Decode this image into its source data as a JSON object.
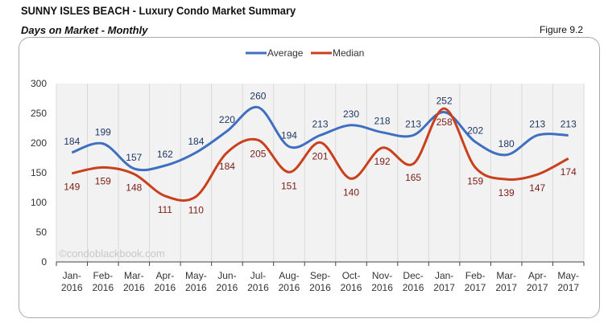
{
  "header": {
    "title": "SUNNY ISLES BEACH - Luxury Condo Market Summary",
    "subtitle": "Days on Market - Monthly",
    "figure": "Figure 9.2"
  },
  "watermark": "©condoblackbook.com",
  "chart_data": {
    "type": "line",
    "title": "",
    "xlabel": "",
    "ylabel": "",
    "categories": [
      "Jan-2016",
      "Feb-2016",
      "Mar-2016",
      "Apr-2016",
      "May-2016",
      "Jun-2016",
      "Jul-2016",
      "Aug-2016",
      "Sep-2016",
      "Oct-2016",
      "Nov-2016",
      "Dec-2016",
      "Jan-2017",
      "Feb-2017",
      "Mar-2017",
      "Apr-2017",
      "May-2017"
    ],
    "ylim": [
      0,
      300
    ],
    "yticks": [
      0,
      50,
      100,
      150,
      200,
      250,
      300
    ],
    "grid": "vertical",
    "legend": "top",
    "series": [
      {
        "name": "Average",
        "color": "#3f6fc0",
        "label_color": "#1f3864",
        "values": [
          184,
          199,
          157,
          162,
          184,
          220,
          260,
          194,
          213,
          230,
          218,
          213,
          252,
          202,
          180,
          213,
          213
        ]
      },
      {
        "name": "Median",
        "color": "#c9401c",
        "label_color": "#7a1c14",
        "values": [
          149,
          159,
          148,
          111,
          110,
          184,
          205,
          151,
          201,
          140,
          192,
          165,
          258,
          159,
          139,
          147,
          174
        ]
      }
    ]
  }
}
